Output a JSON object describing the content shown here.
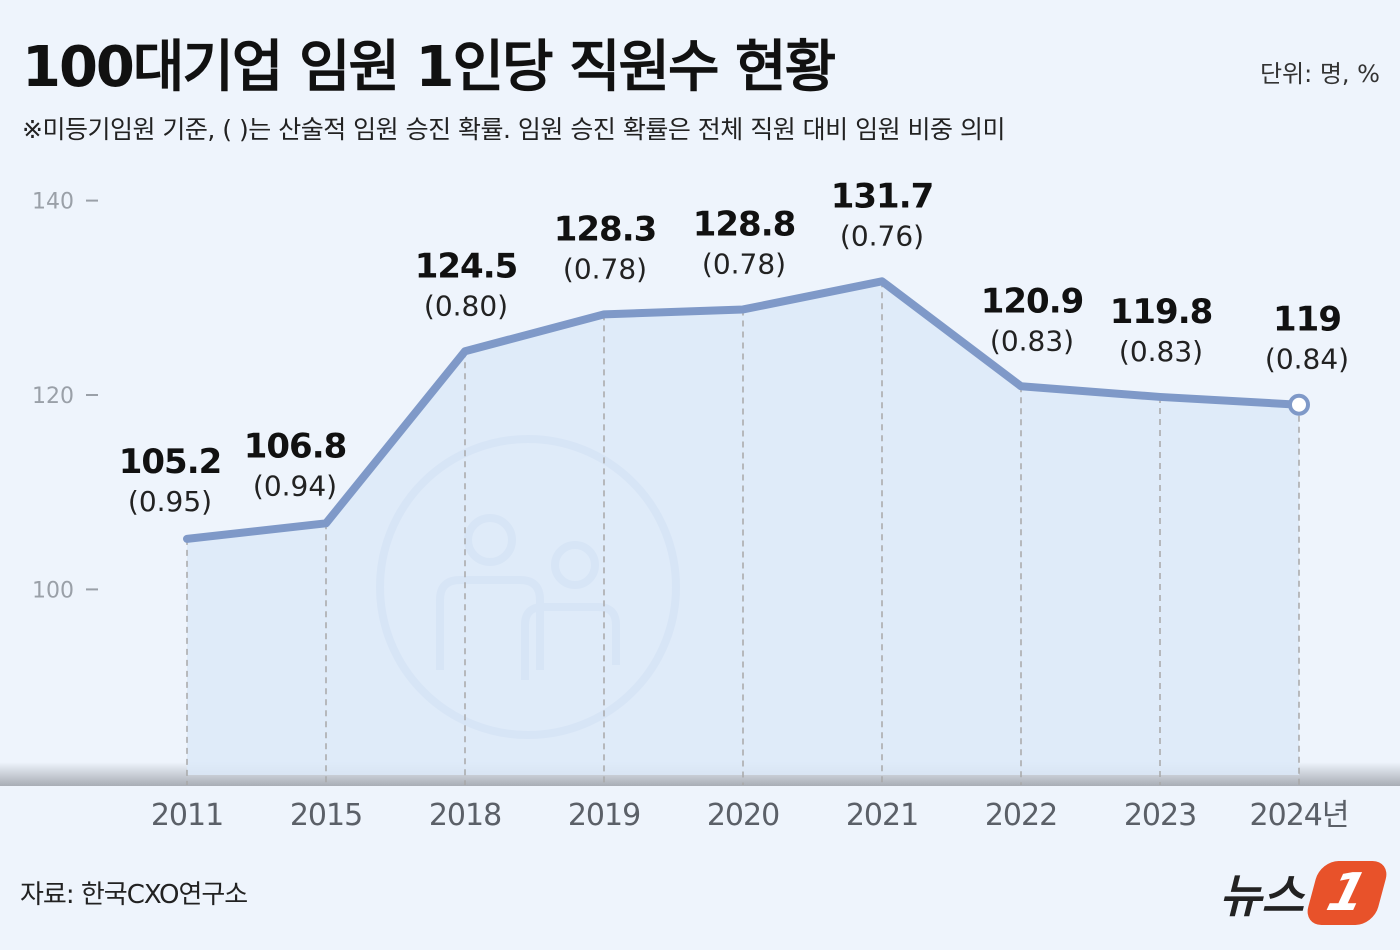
{
  "chart_data": {
    "type": "line",
    "title": "100대기업 임원 1인당 직원수 현황",
    "subtitle": "※미등기임원 기준, ( )는 산술적 임원 승진 확률.  임원 승진 확률은 전체 직원 대비 임원 비중 의미",
    "unit": "단위: 명, %",
    "source": "자료: 한국CXO연구소",
    "categories": [
      "2011",
      "2015",
      "2018",
      "2019",
      "2020",
      "2021",
      "2022",
      "2023",
      "2024년"
    ],
    "values": [
      105.2,
      106.8,
      124.5,
      128.3,
      128.8,
      131.7,
      120.9,
      119.8,
      119
    ],
    "value_labels": [
      "105.2",
      "106.8",
      "124.5",
      "128.3",
      "128.8",
      "131.7",
      "120.9",
      "119.8",
      "119"
    ],
    "secondary_labels": [
      "(0.95)",
      "(0.94)",
      "(0.80)",
      "(0.78)",
      "(0.78)",
      "(0.76)",
      "(0.83)",
      "(0.83)",
      "(0.84)"
    ],
    "yticks": [
      100,
      120,
      140
    ],
    "ytick_labels": [
      "100",
      "120",
      "140"
    ],
    "ylim": [
      80,
      140
    ],
    "grid": false,
    "colors": {
      "line": "#7f99c8",
      "area": "#dce9f8",
      "logo": "#e8522a"
    }
  },
  "logo": {
    "text": "뉴스",
    "mark": "1"
  }
}
